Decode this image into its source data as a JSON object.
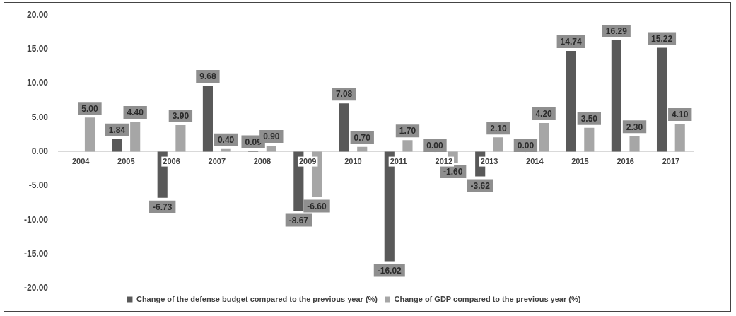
{
  "chart_data": {
    "type": "bar",
    "categories": [
      "2004",
      "2005",
      "2006",
      "2007",
      "2008",
      "2009",
      "2010",
      "2011",
      "2012",
      "2013",
      "2014",
      "2015",
      "2016",
      "2017"
    ],
    "series": [
      {
        "name": "Change of the defense budget compared to the previous year (%)",
        "color": "#595959",
        "values": [
          null,
          1.84,
          -6.73,
          9.68,
          0.09,
          -8.67,
          7.08,
          -16.02,
          0.0,
          -3.62,
          0.0,
          14.74,
          16.29,
          15.22
        ],
        "value_labels": [
          null,
          "1.84",
          "-6.73",
          "9.68",
          "0.09",
          "-8.67",
          "7.08",
          "-16.02",
          "0.00",
          "-3.62",
          "0.00",
          "14.74",
          "16.29",
          "15.22"
        ]
      },
      {
        "name": "Change of GDP compared to the previous year (%)",
        "color": "#a6a6a6",
        "values": [
          5.0,
          4.4,
          3.9,
          0.4,
          0.9,
          -6.6,
          0.7,
          1.7,
          -1.6,
          2.1,
          4.2,
          3.5,
          2.3,
          4.1
        ],
        "value_labels": [
          "5.00",
          "4.40",
          "3.90",
          "0.40",
          "0.90",
          "-6.60",
          "0.70",
          "1.70",
          "-1.60",
          "2.10",
          "4.20",
          "3.50",
          "2.30",
          "4.10"
        ]
      }
    ],
    "ylim": [
      -20,
      20
    ],
    "yticks": [
      {
        "value": -20,
        "label": "-20.00"
      },
      {
        "value": -15,
        "label": "-15.00"
      },
      {
        "value": -10,
        "label": "-10.00"
      },
      {
        "value": -5,
        "label": "-5.00"
      },
      {
        "value": 0,
        "label": "0.00"
      },
      {
        "value": 5,
        "label": "5.00"
      },
      {
        "value": 10,
        "label": "10.00"
      },
      {
        "value": 15,
        "label": "15.00"
      },
      {
        "value": 20,
        "label": "20.00"
      }
    ],
    "grid": false,
    "legend": "bottom"
  }
}
